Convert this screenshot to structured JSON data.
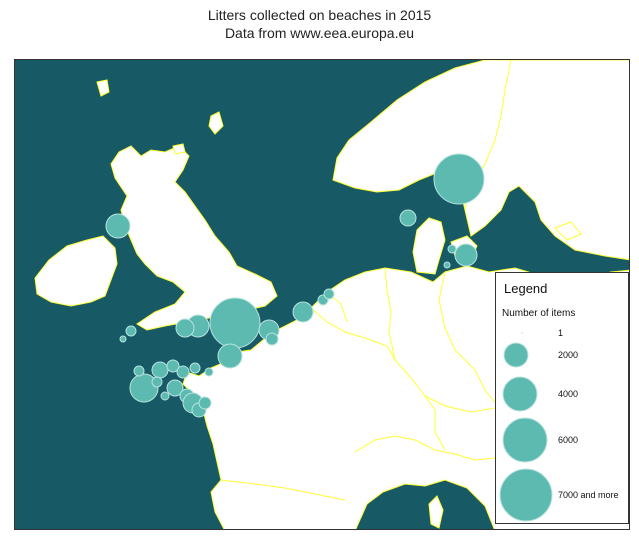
{
  "title": {
    "line1": "Litters collected on beaches in 2015",
    "line2": "Data from www.eea.europa.eu"
  },
  "colors": {
    "sea": "#175a66",
    "land": "#ffffff",
    "border": "#ffff33",
    "bubble_fill": "#5cbab1",
    "bubble_stroke": "#b9e3df"
  },
  "legend": {
    "title": "Legend",
    "subtitle": "Number of items",
    "entries": [
      {
        "label": "1",
        "value": 1
      },
      {
        "label": "2000",
        "value": 2000
      },
      {
        "label": "4000",
        "value": 4000
      },
      {
        "label": "6000",
        "value": 6000
      },
      {
        "label": "7000 and more",
        "value": 7000
      }
    ]
  }
}
